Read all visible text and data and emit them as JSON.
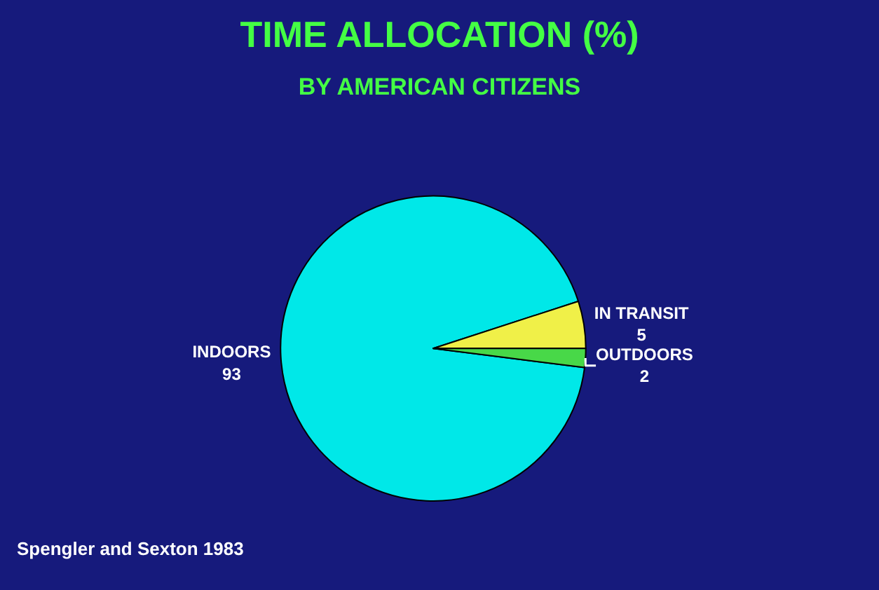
{
  "chart_data": {
    "type": "pie",
    "title": "TIME ALLOCATION (%)",
    "subtitle": "BY AMERICAN CITIZENS",
    "categories": [
      "INDOORS",
      "IN TRANSIT",
      "OUTDOORS"
    ],
    "values": [
      93,
      5,
      2
    ],
    "colors": [
      "#00e8e8",
      "#f0f048",
      "#48d848"
    ],
    "data_labels": true,
    "legend": false,
    "annotations": [
      "Spengler and Sexton 1983"
    ]
  }
}
